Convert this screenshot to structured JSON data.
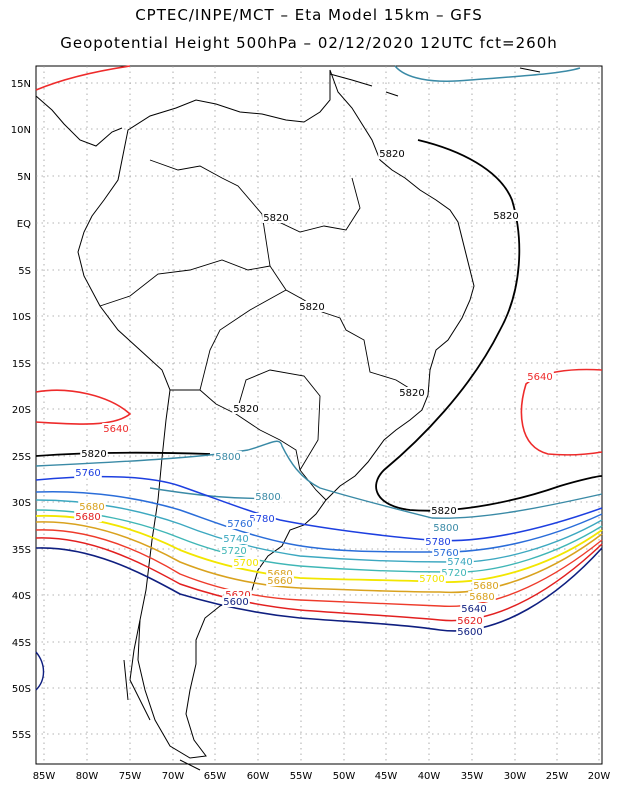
{
  "title_line1": "CPTEC/INPE/MCT –   Eta Model 15km – GFS",
  "title_line2": "Geopotential Height 500hPa – 02/12/2020 12UTC fct=260h",
  "lat_labels": [
    "15N",
    "10N",
    "5N",
    "EQ",
    "5S",
    "10S",
    "15S",
    "20S",
    "25S",
    "30S",
    "35S",
    "40S",
    "45S",
    "50S",
    "55S"
  ],
  "lon_labels": [
    "85W",
    "80W",
    "75W",
    "70W",
    "65W",
    "60W",
    "55W",
    "50W",
    "45W",
    "40W",
    "35W",
    "30W",
    "25W",
    "20W"
  ],
  "contour_labels": [
    "5620",
    "5640",
    "5820",
    "5760",
    "5800",
    "5780",
    "5740",
    "5720",
    "5700",
    "5680",
    "5660",
    "5600"
  ],
  "colors": {
    "c5820": "#000000",
    "c5840": "#ee2b2b",
    "c5800": "#3a8aa6",
    "c5780": "#1d3fe0",
    "c5760": "#2a6dd9",
    "c5740": "#3ca8c0",
    "c5720": "#3fb6b6",
    "c5700": "#f2e600",
    "c5680": "#d9a21e",
    "c5660": "#ee3b2b",
    "c5620": "#e22020",
    "c5600": "#0f1f80",
    "coast": "#000000",
    "grid": "#9a9a9a",
    "topcontour": "#3a8aa6"
  }
}
